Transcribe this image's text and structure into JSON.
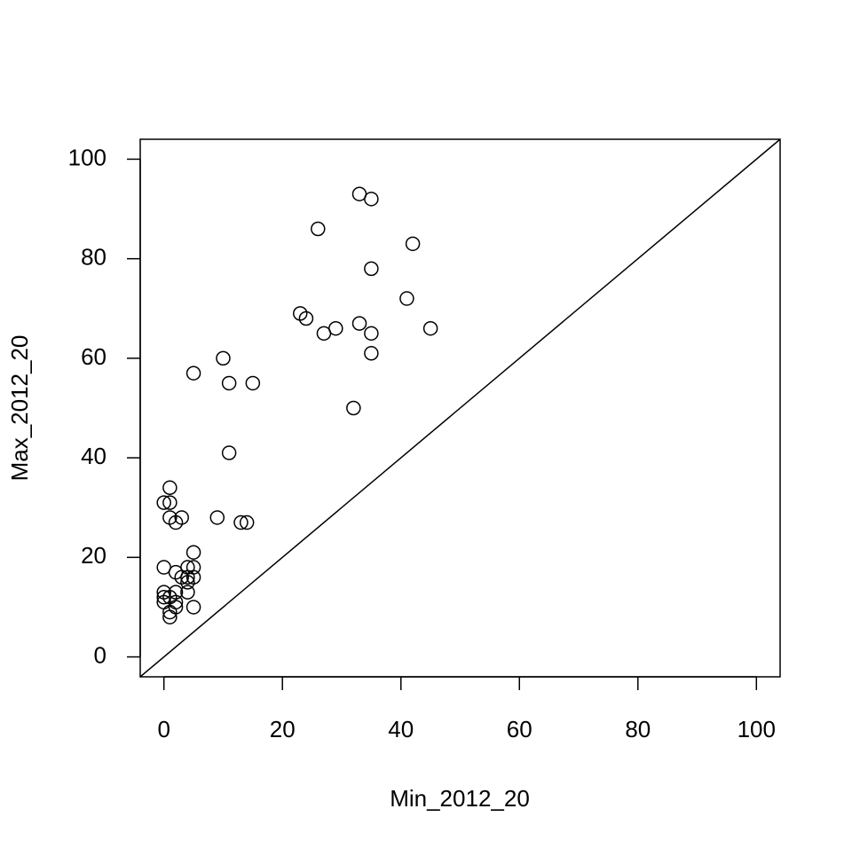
{
  "chart_data": {
    "type": "scatter",
    "x_label": "Min_2012_20",
    "y_label": "Max_2012_20",
    "x": [
      33,
      35,
      26,
      42,
      35,
      41,
      23,
      24,
      29,
      33,
      27,
      35,
      45,
      35,
      10,
      5,
      11,
      15,
      32,
      11,
      1,
      0,
      1,
      1,
      3,
      2,
      9,
      13,
      14,
      5,
      0,
      2,
      4,
      5,
      3,
      4,
      5,
      4,
      4,
      2,
      0,
      0,
      1,
      0,
      2,
      2,
      5,
      1,
      1
    ],
    "values": [
      93,
      92,
      86,
      83,
      78,
      72,
      69,
      68,
      66,
      67,
      65,
      65,
      66,
      61,
      60,
      57,
      55,
      55,
      50,
      41,
      34,
      31,
      31,
      28,
      28,
      27,
      28,
      27,
      27,
      21,
      18,
      17,
      18,
      18,
      16,
      16,
      16,
      15,
      13,
      13,
      13,
      12,
      12,
      11,
      11,
      10,
      10,
      9,
      8
    ],
    "color": "#000000",
    "xlim": [
      -4,
      104
    ],
    "ylim": [
      -4,
      104
    ],
    "xticks": [
      0,
      20,
      40,
      60,
      80,
      100
    ],
    "yticks": [
      0,
      20,
      40,
      60,
      80,
      100
    ],
    "identity_line": true
  }
}
